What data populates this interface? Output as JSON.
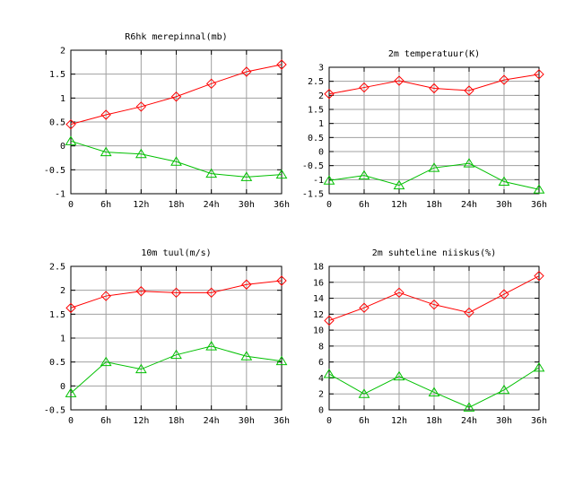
{
  "chart_data": [
    {
      "type": "line",
      "title": "R6hk merepinnal(mb)",
      "categories": [
        "0",
        "6h",
        "12h",
        "18h",
        "24h",
        "30h",
        "36h"
      ],
      "yticks": [
        "-1",
        "-0.5",
        "0",
        "0.5",
        "1",
        "1.5",
        "2"
      ],
      "ylim": [
        -1,
        2
      ],
      "grid": true,
      "series": [
        {
          "values": [
            0.45,
            0.65,
            0.82,
            1.03,
            1.3,
            1.55,
            1.7
          ],
          "color": "#ff0000",
          "marker": "diamond"
        },
        {
          "values": [
            0.1,
            -0.13,
            -0.17,
            -0.33,
            -0.58,
            -0.65,
            -0.6
          ],
          "color": "#00c000",
          "marker": "triangle"
        }
      ]
    },
    {
      "type": "line",
      "title": "2m temperatuur(K)",
      "categories": [
        "0",
        "6h",
        "12h",
        "18h",
        "24h",
        "30h",
        "36h"
      ],
      "yticks": [
        "-1.5",
        "-1",
        "-0.5",
        "0",
        "0.5",
        "1",
        "1.5",
        "2",
        "2.5",
        "3"
      ],
      "ylim": [
        -1.5,
        3
      ],
      "grid": true,
      "series": [
        {
          "values": [
            2.05,
            2.28,
            2.52,
            2.25,
            2.17,
            2.55,
            2.75
          ],
          "color": "#ff0000",
          "marker": "diamond"
        },
        {
          "values": [
            -1.03,
            -0.85,
            -1.2,
            -0.58,
            -0.42,
            -1.07,
            -1.35
          ],
          "color": "#00c000",
          "marker": "triangle"
        }
      ]
    },
    {
      "type": "line",
      "title": "10m tuul(m/s)",
      "categories": [
        "0",
        "6h",
        "12h",
        "18h",
        "24h",
        "30h",
        "36h"
      ],
      "yticks": [
        "-0.5",
        "0",
        "0.5",
        "1",
        "1.5",
        "2",
        "2.5"
      ],
      "ylim": [
        -0.5,
        2.5
      ],
      "grid": true,
      "series": [
        {
          "values": [
            1.63,
            1.88,
            1.98,
            1.95,
            1.95,
            2.12,
            2.2
          ],
          "color": "#ff0000",
          "marker": "diamond"
        },
        {
          "values": [
            -0.15,
            0.5,
            0.35,
            0.65,
            0.83,
            0.62,
            0.52
          ],
          "color": "#00c000",
          "marker": "triangle"
        }
      ]
    },
    {
      "type": "line",
      "title": "2m suhteline niiskus(%)",
      "categories": [
        "0",
        "6h",
        "12h",
        "18h",
        "24h",
        "30h",
        "36h"
      ],
      "yticks": [
        "0",
        "2",
        "4",
        "6",
        "8",
        "10",
        "12",
        "14",
        "16",
        "18"
      ],
      "ylim": [
        0,
        18
      ],
      "grid": true,
      "series": [
        {
          "values": [
            11.2,
            12.8,
            14.7,
            13.2,
            12.2,
            14.5,
            16.8
          ],
          "color": "#ff0000",
          "marker": "diamond"
        },
        {
          "values": [
            4.5,
            2.0,
            4.2,
            2.2,
            0.3,
            2.5,
            5.3
          ],
          "color": "#00c000",
          "marker": "triangle"
        }
      ]
    }
  ]
}
